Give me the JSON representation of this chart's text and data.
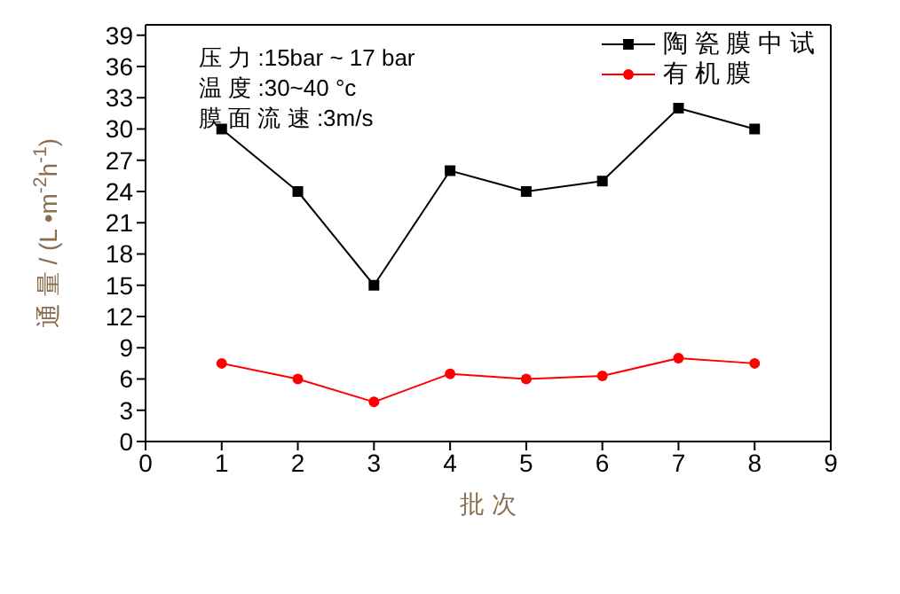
{
  "chart_data": {
    "type": "line",
    "xlabel": "批 次",
    "ylabel": "通 量 / (L •m$^{-2}$h$^{-1}$)",
    "x": [
      1,
      2,
      3,
      4,
      5,
      6,
      7,
      8
    ],
    "series": [
      {
        "name": "陶 瓷 膜 中 试",
        "color": "#000000",
        "marker": "square",
        "values": [
          30,
          24,
          15,
          26,
          24,
          25,
          32,
          30
        ]
      },
      {
        "name": "有 机 膜",
        "color": "#ff0000",
        "marker": "circle",
        "values": [
          7.5,
          6,
          3.8,
          6.5,
          6,
          6.3,
          8,
          7.5
        ]
      }
    ],
    "xlim": [
      0,
      9
    ],
    "xticks": [
      0,
      1,
      2,
      3,
      4,
      5,
      6,
      7,
      8,
      9
    ],
    "ylim": [
      0,
      40
    ],
    "yticks": [
      0,
      3,
      6,
      9,
      12,
      15,
      18,
      21,
      24,
      27,
      30,
      33,
      36,
      39
    ],
    "grid": false,
    "legend": "top right",
    "line_style": "solid",
    "annotations": [
      "压 力 :15bar ~ 17 bar",
      "温 度 :30~40 °c",
      "膜 面 流 速 :3m/s"
    ]
  }
}
